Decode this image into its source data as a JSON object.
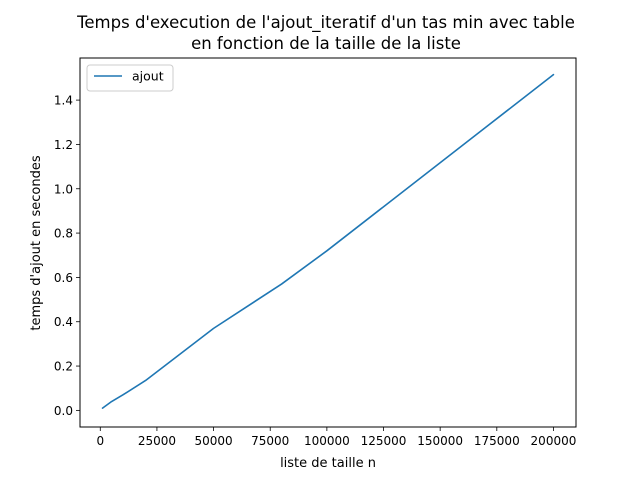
{
  "chart_data": {
    "type": "line",
    "title": [
      "Temps d'execution de l'ajout_iteratif d'un tas min avec table",
      "en fonction de la taille de la liste"
    ],
    "xlabel": "liste de taille n",
    "ylabel": "temps d'ajout en secondes",
    "xlim": [
      -8950,
      209950
    ],
    "ylim": [
      -0.075,
      1.59
    ],
    "xticks": [
      0,
      25000,
      50000,
      75000,
      100000,
      125000,
      150000,
      175000,
      200000
    ],
    "yticks": [
      0.0,
      0.2,
      0.4,
      0.6,
      0.8,
      1.0,
      1.2,
      1.4
    ],
    "ytick_labels": [
      "0.0",
      "0.2",
      "0.4",
      "0.6",
      "0.8",
      "1.0",
      "1.2",
      "1.4"
    ],
    "grid": false,
    "legend_position": "top-left",
    "series": [
      {
        "name": "ajout",
        "color": "#1f77b4",
        "x": [
          1000,
          5000,
          10000,
          20000,
          50000,
          80000,
          100000,
          200000
        ],
        "y": [
          0.01,
          0.04,
          0.07,
          0.135,
          0.37,
          0.57,
          0.72,
          1.515
        ]
      }
    ]
  }
}
